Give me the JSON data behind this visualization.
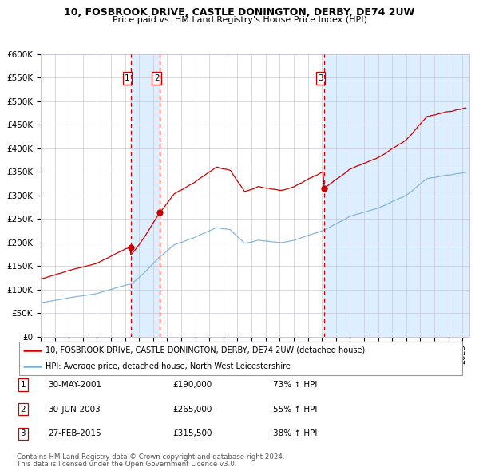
{
  "title": "10, FOSBROOK DRIVE, CASTLE DONINGTON, DERBY, DE74 2UW",
  "subtitle": "Price paid vs. HM Land Registry's House Price Index (HPI)",
  "legend_red": "10, FOSBROOK DRIVE, CASTLE DONINGTON, DERBY, DE74 2UW (detached house)",
  "legend_blue": "HPI: Average price, detached house, North West Leicestershire",
  "footer1": "Contains HM Land Registry data © Crown copyright and database right 2024.",
  "footer2": "This data is licensed under the Open Government Licence v3.0.",
  "transactions": [
    {
      "num": 1,
      "date": "2001-05-30",
      "price": 190000,
      "pct": "73%",
      "x_year": 2001.41
    },
    {
      "num": 2,
      "date": "2003-06-30",
      "price": 265000,
      "pct": "55%",
      "x_year": 2003.49
    },
    {
      "num": 3,
      "date": "2015-02-27",
      "price": 315500,
      "pct": "38%",
      "x_year": 2015.16
    }
  ],
  "table_rows": [
    {
      "num": 1,
      "date_str": "30-MAY-2001",
      "price_str": "£190,000",
      "pct_str": "73% ↑ HPI"
    },
    {
      "num": 2,
      "date_str": "30-JUN-2003",
      "price_str": "£265,000",
      "pct_str": "55% ↑ HPI"
    },
    {
      "num": 3,
      "date_str": "27-FEB-2015",
      "price_str": "£315,500",
      "pct_str": "38% ↑ HPI"
    }
  ],
  "ylim": [
    0,
    600000
  ],
  "yticks": [
    0,
    50000,
    100000,
    150000,
    200000,
    250000,
    300000,
    350000,
    400000,
    450000,
    500000,
    550000,
    600000
  ],
  "xlim_start": 1995.0,
  "xlim_end": 2025.5,
  "background_color": "#ffffff",
  "grid_color": "#c8c8d8",
  "red_color": "#cc0000",
  "blue_color": "#7aadda",
  "shade_color": "#ddeeff",
  "vline_color": "#cc0000",
  "title_fontsize": 9.0,
  "subtitle_fontsize": 8.0
}
